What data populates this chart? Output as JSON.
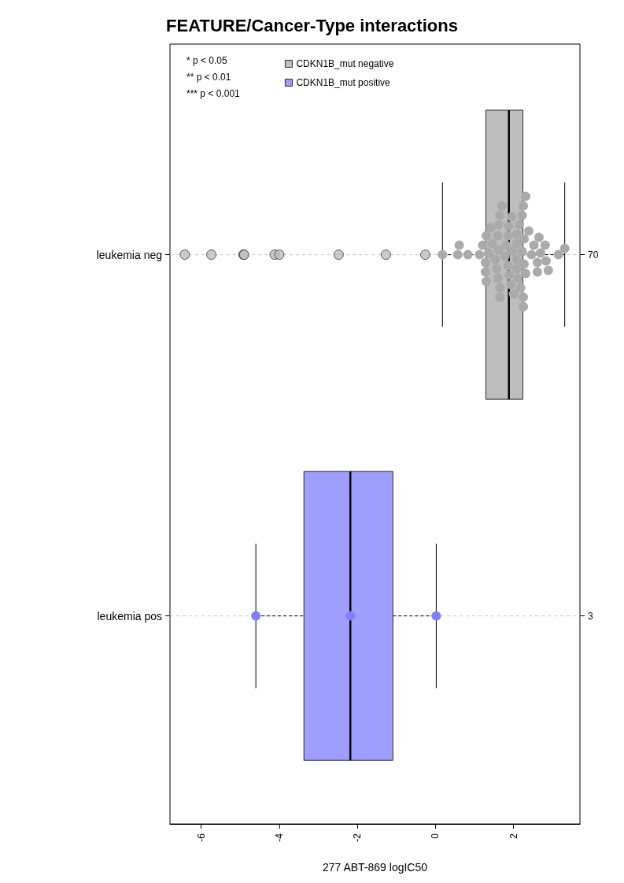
{
  "chart_data": {
    "type": "box",
    "orientation": "horizontal",
    "title": "FEATURE/Cancer-Type interactions",
    "xlabel": "277 ABT-869 logIC50",
    "categories": [
      "leukemia neg",
      "leukemia pos"
    ],
    "y2_categories": [
      "70",
      "3"
    ],
    "xlim": [
      -6.8,
      3.7
    ],
    "xticks": [
      -6,
      -4,
      -2,
      0,
      2
    ],
    "grid": "y",
    "legend": "top",
    "marker": "circle",
    "annotations": [
      "* p < 0.05",
      "** p < 0.01",
      "*** p < 0.001"
    ],
    "series": [
      {
        "name": "CDKN1B_mut negative",
        "color": "#bebebe",
        "boxes": [
          {
            "low": 0.18,
            "q1": 1.29,
            "median": 1.88,
            "q3": 2.24,
            "high": 3.31,
            "outliers": [
              -6.42,
              -5.74,
              -4.92,
              -4.9,
              -4.12,
              -4.0,
              -2.48,
              -1.27,
              -0.26
            ]
          },
          null
        ]
      },
      {
        "name": "CDKN1B_mut positive",
        "color": "#9e9eff",
        "boxes": [
          null,
          {
            "low": -4.6,
            "q1": -3.37,
            "median": -2.18,
            "q3": -1.09,
            "high": 0.02
          }
        ]
      },
      {
        "type": "scatter",
        "color": "#aaaaaa",
        "x": [
          "leukemia neg",
          "leukemia neg",
          "leukemia neg",
          "leukemia neg",
          "leukemia neg",
          "leukemia neg",
          "leukemia neg",
          "leukemia neg",
          "leukemia neg",
          "leukemia neg",
          "leukemia neg",
          "leukemia neg",
          "leukemia neg",
          "leukemia neg",
          "leukemia neg",
          "leukemia neg",
          "leukemia neg",
          "leukemia neg",
          "leukemia neg",
          "leukemia neg",
          "leukemia neg",
          "leukemia neg",
          "leukemia neg",
          "leukemia neg",
          "leukemia neg",
          "leukemia neg",
          "leukemia neg",
          "leukemia neg",
          "leukemia neg",
          "leukemia neg",
          "leukemia neg",
          "leukemia neg",
          "leukemia neg",
          "leukemia neg",
          "leukemia neg",
          "leukemia neg",
          "leukemia neg",
          "leukemia neg",
          "leukemia neg",
          "leukemia neg",
          "leukemia neg",
          "leukemia neg",
          "leukemia neg",
          "leukemia neg",
          "leukemia neg",
          "leukemia neg",
          "leukemia neg",
          "leukemia neg",
          "leukemia neg",
          "leukemia neg",
          "leukemia neg",
          "leukemia neg",
          "leukemia neg",
          "leukemia neg",
          "leukemia neg",
          "leukemia neg",
          "leukemia neg",
          "leukemia neg",
          "leukemia neg",
          "leukemia neg",
          "leukemia neg"
        ],
        "values": [
          0.18,
          0.57,
          0.61,
          0.83,
          1.13,
          1.21,
          1.28,
          1.28,
          1.3,
          1.3,
          1.36,
          1.41,
          1.45,
          1.53,
          1.57,
          1.6,
          1.6,
          1.62,
          1.62,
          1.65,
          1.65,
          1.65,
          1.7,
          1.78,
          1.81,
          1.86,
          1.86,
          1.88,
          1.88,
          1.93,
          1.95,
          1.97,
          2.0,
          2.08,
          2.08,
          2.08,
          2.08,
          2.11,
          2.15,
          2.18,
          2.22,
          2.22,
          2.25,
          2.25,
          2.25,
          2.27,
          2.27,
          2.31,
          2.31,
          2.39,
          2.46,
          2.52,
          2.61,
          2.61,
          2.65,
          2.69,
          2.81,
          2.83,
          2.89,
          3.15,
          3.31
        ]
      },
      {
        "type": "scatter",
        "color": "#7f7fff",
        "x": [
          "leukemia pos",
          "leukemia pos",
          "leukemia pos"
        ],
        "values": [
          -4.6,
          -2.18,
          0.02
        ]
      }
    ]
  }
}
